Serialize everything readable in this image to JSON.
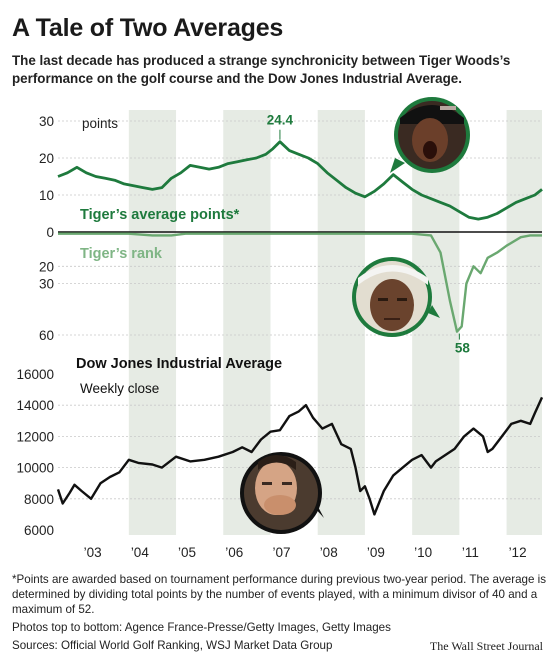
{
  "header": {
    "title": "A Tale of Two Averages",
    "subtitle": "The last decade has produced a strange synchronicity between Tiger Woods’s performance on the golf course and the Dow Jones Industrial Average."
  },
  "chart_data": [
    {
      "type": "line",
      "title": "Tiger’s average points*",
      "unit_label": "points",
      "ylim": [
        0,
        30
      ],
      "yticks": [
        "30",
        "20",
        "10",
        "0"
      ],
      "annotation": {
        "label": "24.4",
        "x": 2007.2,
        "y": 24.4
      },
      "series": [
        {
          "x": [
            2002.5,
            2002.7,
            2002.9,
            2003.1,
            2003.3,
            2003.5,
            2003.7,
            2003.9,
            2004.1,
            2004.3,
            2004.5,
            2004.7,
            2004.9,
            2005.1,
            2005.3,
            2005.5,
            2005.7,
            2005.9,
            2006.1,
            2006.3,
            2006.5,
            2006.7,
            2006.9,
            2007.05,
            2007.2,
            2007.4,
            2007.6,
            2007.8,
            2008.0,
            2008.2,
            2008.4,
            2008.6,
            2008.8,
            2009.0,
            2009.2,
            2009.4,
            2009.6,
            2009.8,
            2010.0,
            2010.2,
            2010.4,
            2010.6,
            2010.8,
            2011.0,
            2011.2,
            2011.4,
            2011.6,
            2011.8,
            2012.0,
            2012.2,
            2012.4,
            2012.6,
            2012.75
          ],
          "y": [
            15,
            16,
            17.5,
            16,
            15,
            14.5,
            14,
            13,
            12.5,
            12,
            11.5,
            12,
            14.5,
            16,
            18,
            17.5,
            17,
            17.5,
            18.5,
            19,
            19.5,
            20,
            21,
            22.5,
            24.4,
            22,
            21,
            20,
            18.5,
            16,
            14,
            12,
            10.5,
            9.5,
            11,
            13,
            15.5,
            13.5,
            11.5,
            10,
            9,
            8,
            7,
            5.5,
            4,
            3.5,
            4,
            5,
            6.5,
            8,
            9,
            10,
            11.5
          ]
        }
      ]
    },
    {
      "type": "line",
      "title": "Tiger’s rank",
      "ylim": [
        0,
        60
      ],
      "yticks": [
        "20",
        "30",
        "60"
      ],
      "annotation": {
        "label": "58",
        "x": 2011.0,
        "y": 58
      },
      "series": [
        {
          "x": [
            2002.5,
            2003.0,
            2004.0,
            2004.5,
            2004.9,
            2005.2,
            2006.0,
            2007.0,
            2008.0,
            2009.0,
            2010.0,
            2010.4,
            2010.6,
            2010.8,
            2010.95,
            2011.05,
            2011.15,
            2011.3,
            2011.45,
            2011.6,
            2011.8,
            2012.0,
            2012.3,
            2012.5,
            2012.75
          ],
          "y": [
            1,
            1,
            1,
            2,
            2,
            1,
            1,
            1,
            1,
            1,
            1,
            2,
            12,
            40,
            58,
            55,
            30,
            20,
            24,
            15,
            12,
            8,
            3,
            2,
            2
          ]
        }
      ]
    },
    {
      "type": "line",
      "title": "Dow Jones Industrial Average",
      "subtitle": "Weekly close",
      "ylim": [
        6000,
        16000
      ],
      "yticks": [
        "16000",
        "14000",
        "12000",
        "10000",
        "8000",
        "6000"
      ],
      "x_tick_labels": [
        "’03",
        "’04",
        "’05",
        "’06",
        "’07",
        "’08",
        "’09",
        "’10",
        "’11",
        "’12"
      ],
      "series": [
        {
          "x": [
            2002.5,
            2002.6,
            2002.75,
            2002.85,
            2003.0,
            2003.2,
            2003.4,
            2003.6,
            2003.8,
            2004.0,
            2004.2,
            2004.5,
            2004.7,
            2005.0,
            2005.3,
            2005.6,
            2005.9,
            2006.2,
            2006.4,
            2006.6,
            2006.8,
            2007.0,
            2007.2,
            2007.4,
            2007.6,
            2007.75,
            2007.9,
            2008.1,
            2008.3,
            2008.5,
            2008.7,
            2008.8,
            2008.9,
            2009.0,
            2009.1,
            2009.2,
            2009.4,
            2009.6,
            2009.8,
            2010.0,
            2010.2,
            2010.4,
            2010.5,
            2010.7,
            2010.9,
            2011.1,
            2011.3,
            2011.5,
            2011.6,
            2011.7,
            2011.9,
            2012.1,
            2012.3,
            2012.5,
            2012.6,
            2012.75
          ],
          "y": [
            8600,
            7700,
            8400,
            8900,
            8500,
            8000,
            9000,
            9400,
            9700,
            10500,
            10300,
            10200,
            10000,
            10700,
            10400,
            10500,
            10700,
            11000,
            11300,
            11000,
            11800,
            12300,
            12400,
            13300,
            13600,
            14000,
            13200,
            12500,
            12800,
            11500,
            11200,
            10000,
            8500,
            8800,
            8000,
            7000,
            8500,
            9500,
            10000,
            10500,
            10800,
            10000,
            10400,
            10800,
            11200,
            12000,
            12500,
            12000,
            11000,
            11200,
            12000,
            12800,
            13000,
            12800,
            13500,
            14500
          ]
        }
      ]
    }
  ],
  "footer": {
    "note": "*Points are awarded based on tournament performance during previous two-year period. The average is determined by dividing total points by the number of events played, with a minimum divisor of 40 and a maximum of 52.",
    "credits": "Photos top to bottom: Agence France-Presse/Getty Images, Getty Images",
    "sources": "Sources: Official World Golf Ranking, WSJ Market Data Group",
    "brand": "The Wall Street Journal"
  },
  "colors": {
    "points_line": "#1e7a3d",
    "rank_line": "#6aa870",
    "dow_line": "#111111",
    "band": "#e6ebe4",
    "title_green": "#1e7a3d",
    "rank_label": "#7fb585"
  },
  "icons": {
    "photo_top": "tiger-woods-shouting-photo-icon",
    "photo_middle": "tiger-woods-portrait-photo-icon",
    "photo_bottom": "worried-trader-photo-icon"
  }
}
